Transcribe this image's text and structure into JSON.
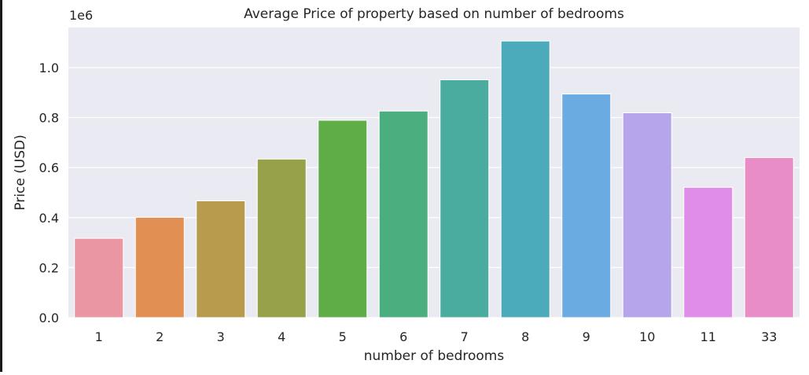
{
  "chart_data": {
    "type": "bar",
    "title": "Average Price of property based on number of bedrooms",
    "xlabel": "number of bedrooms",
    "ylabel": "Price (USD)",
    "offset_label": "1e6",
    "categories": [
      "1",
      "2",
      "3",
      "4",
      "5",
      "6",
      "7",
      "8",
      "9",
      "10",
      "11",
      "33"
    ],
    "values": [
      317000,
      401000,
      467000,
      634000,
      789000,
      826000,
      951000,
      1106000,
      894000,
      819000,
      521000,
      640000
    ],
    "colors": [
      "#ea96a3",
      "#e28f54",
      "#b99b4d",
      "#96a149",
      "#5ead47",
      "#4bae7e",
      "#4aac9e",
      "#4babbb",
      "#6aabe1",
      "#b6a5ea",
      "#e08ce9",
      "#e98dc6"
    ],
    "yticks": [
      0.0,
      0.2,
      0.4,
      0.6,
      0.8,
      1.0
    ],
    "ytick_labels": [
      "0.0",
      "0.2",
      "0.4",
      "0.6",
      "0.8",
      "1.0"
    ],
    "ytick_scale": 1000000,
    "ylim": [
      0,
      1160000
    ],
    "grid": true,
    "background": "#eaeaf2"
  }
}
